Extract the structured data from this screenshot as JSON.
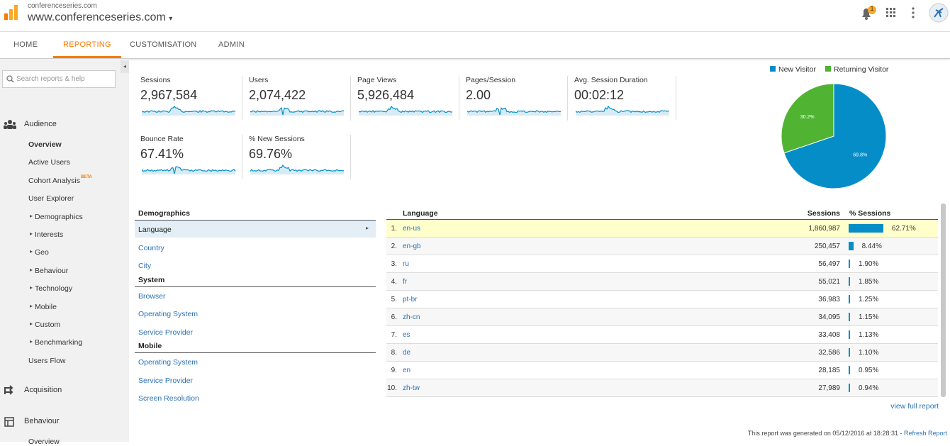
{
  "header": {
    "account": "conferenceseries.com",
    "property": "www.conferenceseries.com",
    "notifications": "1"
  },
  "tabs": [
    "HOME",
    "REPORTING",
    "CUSTOMISATION",
    "ADMIN"
  ],
  "active_tab": 1,
  "search_placeholder": "Search reports & help",
  "sidebar": {
    "sections": [
      {
        "label": "Audience",
        "items": [
          {
            "label": "Overview",
            "active": true
          },
          {
            "label": "Active Users"
          },
          {
            "label": "Cohort Analysis",
            "badge": "BETA"
          },
          {
            "label": "User Explorer"
          },
          {
            "label": "Demographics",
            "expandable": true
          },
          {
            "label": "Interests",
            "expandable": true
          },
          {
            "label": "Geo",
            "expandable": true
          },
          {
            "label": "Behaviour",
            "expandable": true
          },
          {
            "label": "Technology",
            "expandable": true
          },
          {
            "label": "Mobile",
            "expandable": true
          },
          {
            "label": "Custom",
            "expandable": true
          },
          {
            "label": "Benchmarking",
            "expandable": true
          },
          {
            "label": "Users Flow"
          }
        ]
      },
      {
        "label": "Acquisition",
        "items": []
      },
      {
        "label": "Behaviour",
        "items": [
          {
            "label": "Overview"
          }
        ]
      }
    ]
  },
  "metrics": [
    {
      "label": "Sessions",
      "value": "2,967,584"
    },
    {
      "label": "Users",
      "value": "2,074,422"
    },
    {
      "label": "Page Views",
      "value": "5,926,484"
    },
    {
      "label": "Pages/Session",
      "value": "2.00"
    },
    {
      "label": "Avg. Session Duration",
      "value": "00:02:12"
    },
    {
      "label": "Bounce Rate",
      "value": "67.41%"
    },
    {
      "label": "% New Sessions",
      "value": "69.76%"
    }
  ],
  "chart_data": {
    "type": "pie",
    "categories": [
      "New Visitor",
      "Returning Visitor"
    ],
    "values": [
      69.8,
      30.2
    ],
    "value_labels": [
      "69.8%",
      "30.2%"
    ],
    "colors": [
      "#058dc7",
      "#50b432"
    ],
    "legend": "top"
  },
  "demographics": {
    "groups": [
      {
        "title": "Demographics",
        "links": [
          "Language",
          "Country",
          "City"
        ]
      },
      {
        "title": "System",
        "links": [
          "Browser",
          "Operating System",
          "Service Provider"
        ]
      },
      {
        "title": "Mobile",
        "links": [
          "Operating System",
          "Service Provider",
          "Screen Resolution"
        ]
      }
    ]
  },
  "table": {
    "columns": [
      "Language",
      "Sessions",
      "% Sessions"
    ],
    "rows": [
      {
        "rank": "1.",
        "language": "en-us",
        "sessions": "1,860,987",
        "pct_sessions": {
          "value": 62.71,
          "label": "62.71%"
        }
      },
      {
        "rank": "2.",
        "language": "en-gb",
        "sessions": "250,457",
        "pct_sessions": {
          "value": 8.44,
          "label": "8.44%"
        }
      },
      {
        "rank": "3.",
        "language": "ru",
        "sessions": "56,497",
        "pct_sessions": {
          "value": 1.9,
          "label": "1.90%"
        }
      },
      {
        "rank": "4.",
        "language": "fr",
        "sessions": "55,021",
        "pct_sessions": {
          "value": 1.85,
          "label": "1.85%"
        }
      },
      {
        "rank": "5.",
        "language": "pt-br",
        "sessions": "36,983",
        "pct_sessions": {
          "value": 1.25,
          "label": "1.25%"
        }
      },
      {
        "rank": "6.",
        "language": "zh-cn",
        "sessions": "34,095",
        "pct_sessions": {
          "value": 1.15,
          "label": "1.15%"
        }
      },
      {
        "rank": "7.",
        "language": "es",
        "sessions": "33,408",
        "pct_sessions": {
          "value": 1.13,
          "label": "1.13%"
        }
      },
      {
        "rank": "8.",
        "language": "de",
        "sessions": "32,586",
        "pct_sessions": {
          "value": 1.1,
          "label": "1.10%"
        }
      },
      {
        "rank": "9.",
        "language": "en",
        "sessions": "28,185",
        "pct_sessions": {
          "value": 0.95,
          "label": "0.95%"
        }
      },
      {
        "rank": "10.",
        "language": "zh-tw",
        "sessions": "27,989",
        "pct_sessions": {
          "value": 0.94,
          "label": "0.94%"
        }
      }
    ],
    "footer_link": "view full report"
  },
  "footer": {
    "text": "This report was generated on 05/12/2016 at 18:28:31 - ",
    "link": "Refresh Report"
  }
}
